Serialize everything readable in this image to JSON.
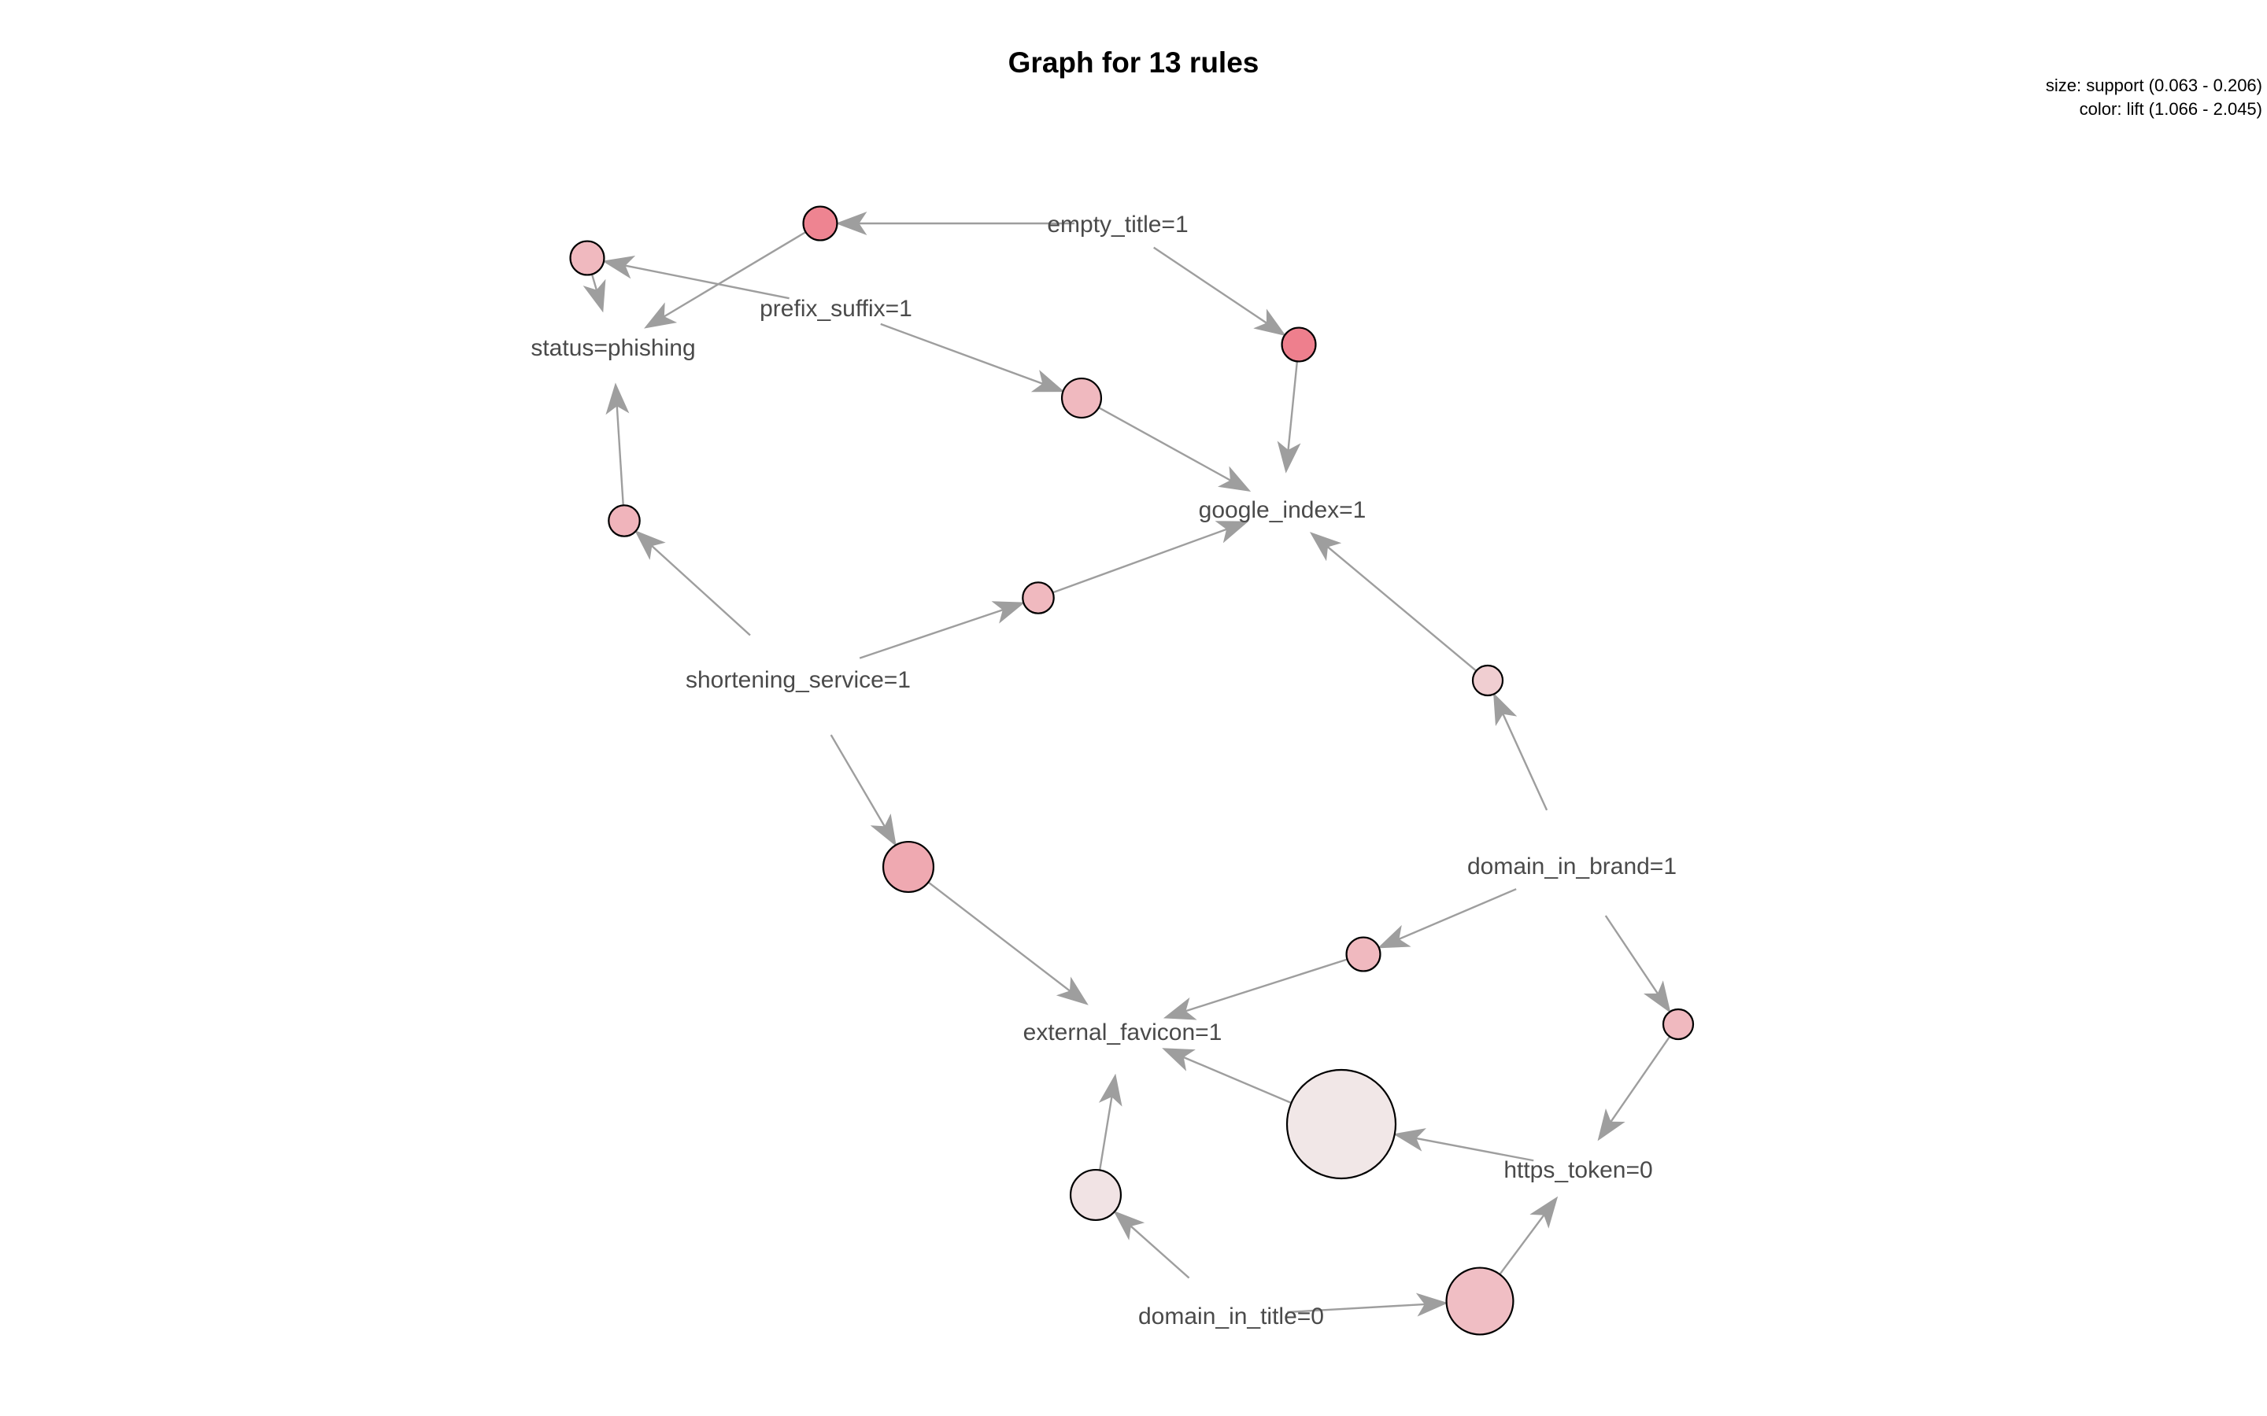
{
  "title": "Graph for 13 rules",
  "legend": {
    "size": "size: support (0.063 - 0.206)",
    "color": "color: lift (1.066 - 2.045)"
  },
  "colors": {
    "edge": "#9e9e9e",
    "label": "#4a4a4a",
    "node_stroke": "#000000",
    "lift_low": "#f1e7e7",
    "lift_high": "#ee7f8d"
  },
  "items": [
    {
      "id": "empty_title",
      "label": "empty_title=1"
    },
    {
      "id": "prefix_suffix",
      "label": "prefix_suffix=1"
    },
    {
      "id": "status",
      "label": "status=phishing"
    },
    {
      "id": "google_index",
      "label": "google_index=1"
    },
    {
      "id": "shortening_service",
      "label": "shortening_service=1"
    },
    {
      "id": "domain_in_brand",
      "label": "domain_in_brand=1"
    },
    {
      "id": "external_favicon",
      "label": "external_favicon=1"
    },
    {
      "id": "https_token",
      "label": "https_token=0"
    },
    {
      "id": "domain_in_title",
      "label": "domain_in_title=0"
    }
  ],
  "rules": [
    {
      "id": "r1",
      "lhs": [
        "empty_title"
      ],
      "rhs": "status",
      "support": 0.07,
      "lift": 2.0
    },
    {
      "id": "r2",
      "lhs": [
        "prefix_suffix"
      ],
      "rhs": "status",
      "support": 0.07,
      "lift": 1.5
    },
    {
      "id": "r3",
      "lhs": [
        "empty_title"
      ],
      "rhs": "google_index",
      "support": 0.07,
      "lift": 2.045
    },
    {
      "id": "r4",
      "lhs": [
        "prefix_suffix"
      ],
      "rhs": "google_index",
      "support": 0.08,
      "lift": 1.5
    },
    {
      "id": "r5",
      "lhs": [
        "shortening_service"
      ],
      "rhs": "status",
      "support": 0.065,
      "lift": 1.55
    },
    {
      "id": "r6",
      "lhs": [
        "shortening_service"
      ],
      "rhs": "google_index",
      "support": 0.065,
      "lift": 1.5
    },
    {
      "id": "r7",
      "lhs": [
        "domain_in_brand"
      ],
      "rhs": "google_index",
      "support": 0.063,
      "lift": 1.3
    },
    {
      "id": "r8",
      "lhs": [
        "shortening_service"
      ],
      "rhs": "external_favicon",
      "support": 0.1,
      "lift": 1.65
    },
    {
      "id": "r9",
      "lhs": [
        "domain_in_brand"
      ],
      "rhs": "external_favicon",
      "support": 0.07,
      "lift": 1.5
    },
    {
      "id": "r10",
      "lhs": [
        "domain_in_brand"
      ],
      "rhs": "https_token",
      "support": 0.063,
      "lift": 1.5
    },
    {
      "id": "r11",
      "lhs": [
        "https_token"
      ],
      "rhs": "external_favicon",
      "support": 0.206,
      "lift": 1.066
    },
    {
      "id": "r12",
      "lhs": [
        "domain_in_title"
      ],
      "rhs": "external_favicon",
      "support": 0.1,
      "lift": 1.1
    },
    {
      "id": "r13",
      "lhs": [
        "domain_in_title"
      ],
      "rhs": "https_token",
      "support": 0.13,
      "lift": 1.45
    }
  ]
}
